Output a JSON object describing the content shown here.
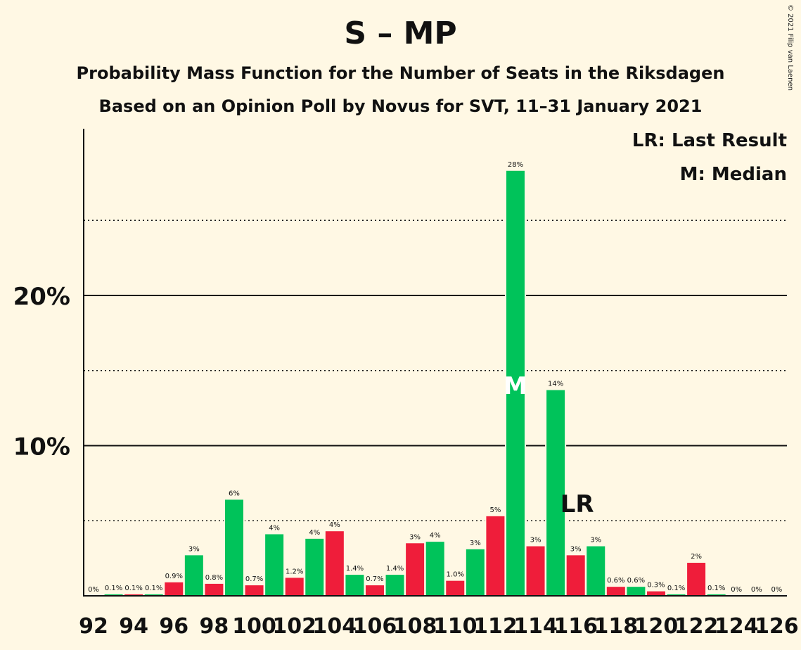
{
  "header": {
    "title": "S – MP",
    "subtitle1": "Probability Mass Function for the Number of Seats in the Riksdagen",
    "subtitle2": "Based on an Opinion Poll by Novus for SVT, 11–31 January 2021"
  },
  "legend": {
    "last_result": "LR: Last Result",
    "median": "M: Median"
  },
  "copyright": "© 2021 Filip van Laenen",
  "colors": {
    "background": "#fff8e4",
    "green": "#00c35a",
    "red": "#ef1d3a",
    "text": "#111111"
  },
  "chart_data": {
    "type": "bar",
    "x": [
      92,
      93,
      94,
      95,
      96,
      97,
      98,
      99,
      100,
      101,
      102,
      103,
      104,
      105,
      106,
      107,
      108,
      109,
      110,
      111,
      112,
      113,
      114,
      115,
      116,
      117,
      118,
      119,
      120,
      121,
      122,
      123,
      124,
      125,
      126
    ],
    "values": [
      0,
      0.1,
      0.1,
      0.1,
      0.9,
      2.7,
      0.8,
      6.4,
      0.7,
      4.1,
      1.2,
      3.8,
      4.3,
      1.4,
      0.7,
      1.4,
      3.5,
      3.6,
      1.0,
      3.1,
      5.3,
      28.3,
      3.3,
      13.7,
      2.7,
      3.3,
      0.6,
      0.6,
      0.3,
      0.1,
      2.2,
      0.1,
      0,
      0,
      0
    ],
    "labels": [
      "0%",
      "0.1%",
      "0.1%",
      "0.1%",
      "0.9%",
      "3%",
      "0.8%",
      "6%",
      "0.7%",
      "4%",
      "1.2%",
      "4%",
      "4%",
      "1.4%",
      "0.7%",
      "1.4%",
      "3%",
      "4%",
      "1.0%",
      "3%",
      "5%",
      "28%",
      "3%",
      "14%",
      "3%",
      "3%",
      "0.6%",
      "0.6%",
      "0.3%",
      "0.1%",
      "2%",
      "0.1%",
      "0%",
      "0%",
      "0%"
    ],
    "colors_by_x_parity": {
      "odd": "green",
      "even": "red"
    },
    "x_tick_labels": [
      "92",
      "94",
      "96",
      "98",
      "100",
      "102",
      "104",
      "106",
      "108",
      "110",
      "112",
      "114",
      "116",
      "118",
      "120",
      "122",
      "124",
      "126"
    ],
    "y_tick_labels": [
      "10%",
      "20%"
    ],
    "y_major_ticks": [
      10,
      20
    ],
    "y_minor_ticks": [
      5,
      15,
      25
    ],
    "ylim": [
      0,
      31
    ],
    "median": {
      "x": 113,
      "label": "M"
    },
    "last_result": {
      "x": 116,
      "label": "LR"
    }
  }
}
